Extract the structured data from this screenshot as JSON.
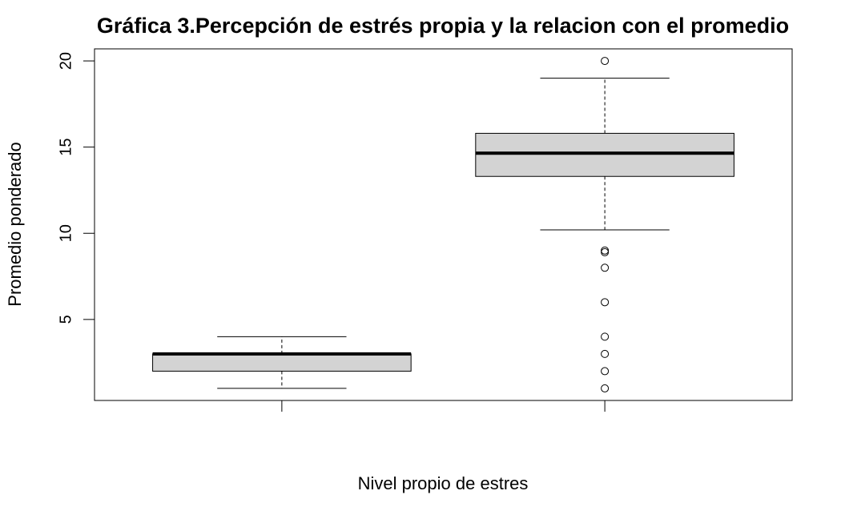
{
  "chart_data": {
    "type": "boxplot",
    "title": "Gráfica 3.Percepción de estrés propia y la relacion con el promedio",
    "xlabel": "Nivel propio de estres",
    "ylabel": "Promedio ponderado",
    "categories": [
      "",
      ""
    ],
    "ylim": [
      0.3,
      20.7
    ],
    "yticks": [
      5,
      10,
      15,
      20
    ],
    "box_color": "#d3d3d3",
    "grid": false,
    "boxes": [
      {
        "whisker_low": 1,
        "q1": 2,
        "median": 3,
        "q3": 3,
        "whisker_high": 4,
        "outliers": []
      },
      {
        "whisker_low": 10.2,
        "q1": 13.3,
        "median": 14.65,
        "q3": 15.8,
        "whisker_high": 19,
        "outliers": [
          20,
          9,
          8.9,
          8,
          6,
          4,
          3,
          2,
          1
        ]
      }
    ]
  }
}
